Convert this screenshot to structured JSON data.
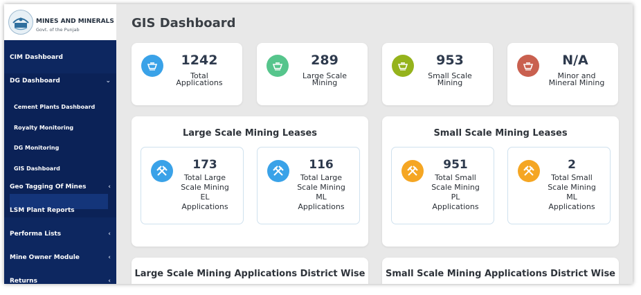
{
  "brand": {
    "title": "MINES AND MINERALS",
    "subtitle": "Govt. of the Punjab"
  },
  "nav": {
    "cim": "CIM Dashboard",
    "dg": "DG Dashboard",
    "sub": [
      "Cement Plants Dashboard",
      "Royalty Monitoring",
      "DG Monitoring",
      "GIS Dashboard"
    ],
    "geo": "Geo Tagging Of Mines",
    "lsm": "LSM Plant Reports",
    "performa": "Performa Lists",
    "owner": "Mine Owner Module",
    "returns": "Returns"
  },
  "page": {
    "title": "GIS Dashboard"
  },
  "stats": [
    {
      "value": "1242",
      "line1": "Total",
      "line2": "Applications",
      "color": "#3aa2e8"
    },
    {
      "value": "289",
      "line1": "Large Scale",
      "line2": "Mining",
      "color": "#56c58c"
    },
    {
      "value": "953",
      "line1": "Small Scale",
      "line2": "Mining",
      "color": "#95b31c"
    },
    {
      "value": "N/A",
      "line1": "Minor and",
      "line2": "Mineral Mining",
      "color": "#c9604f"
    }
  ],
  "large_leases": {
    "title": "Large Scale Mining Leases",
    "items": [
      {
        "value": "173",
        "lines": [
          "Total Large",
          "Scale Mining",
          "EL",
          "Applications"
        ]
      },
      {
        "value": "116",
        "lines": [
          "Total Large",
          "Scale Mining",
          "ML",
          "Applications"
        ]
      }
    ],
    "color": "#3aa2e8"
  },
  "small_leases": {
    "title": "Small Scale Mining Leases",
    "items": [
      {
        "value": "951",
        "lines": [
          "Total Small",
          "Scale Mining",
          "PL",
          "Applications"
        ]
      },
      {
        "value": "2",
        "lines": [
          "Total Small",
          "Scale Mining",
          "ML",
          "Applications"
        ]
      }
    ],
    "color": "#f5a623"
  },
  "district": {
    "large_title": "Large Scale Mining Applications District Wise",
    "small_title": "Small Scale Mining Applications District Wise"
  }
}
